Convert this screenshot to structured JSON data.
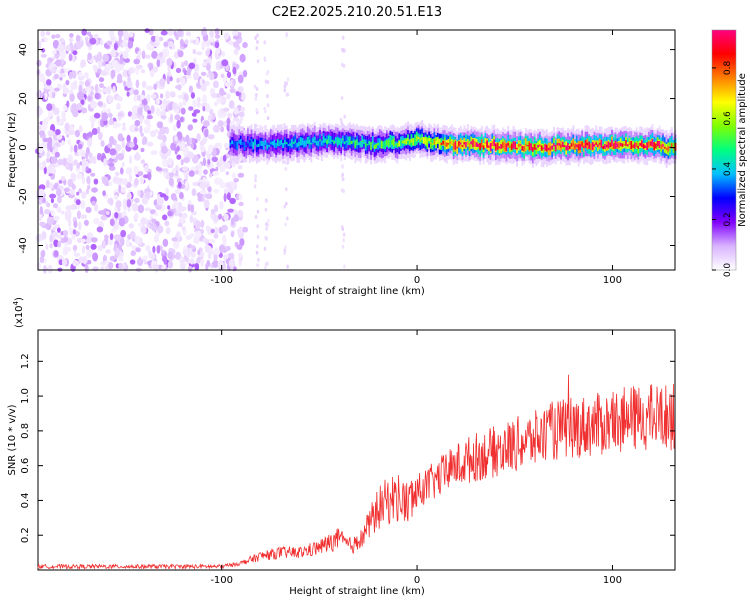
{
  "title": "C2E2.2025.210.20.51.E13",
  "chart_data": [
    {
      "type": "heatmap",
      "xlabel": "Height of straight line (km)",
      "ylabel": "Frequency (Hz)",
      "xlim": [
        -194,
        132
      ],
      "ylim": [
        -50,
        48
      ],
      "xticks": [
        -100,
        0,
        100
      ],
      "yticks": [
        -40,
        -20,
        0,
        20,
        40
      ],
      "colorbar": {
        "label": "Normalized spectral amplitude",
        "range": [
          0,
          0.95
        ],
        "ticks": [
          0.0,
          0.2,
          0.4,
          0.6,
          0.8
        ],
        "tick_labels": [
          "0.0",
          "0.2",
          "0.4",
          "0.6",
          "0.8"
        ],
        "colormap": [
          "#ffffff",
          "#d9b3ff",
          "#8000ff",
          "#0000ff",
          "#00c0ff",
          "#00ff80",
          "#80ff00",
          "#ffff00",
          "#ff8000",
          "#ff0000",
          "#ff0080"
        ]
      },
      "noise_region": {
        "x": [
          -194,
          -88
        ],
        "freq": [
          -50,
          48
        ],
        "amplitude": [
          0.02,
          0.12
        ]
      },
      "signal_band": {
        "x": [
          -96,
          132
        ],
        "center_freq": [
          [
            -96,
            2
          ],
          [
            -80,
            1
          ],
          [
            -60,
            2
          ],
          [
            -40,
            3
          ],
          [
            -20,
            1
          ],
          [
            0,
            3
          ],
          [
            20,
            1
          ],
          [
            40,
            1
          ],
          [
            60,
            0
          ],
          [
            80,
            1
          ],
          [
            100,
            1
          ],
          [
            120,
            1
          ],
          [
            132,
            0
          ]
        ],
        "peak_amplitude": [
          [
            -96,
            0.35
          ],
          [
            -60,
            0.42
          ],
          [
            -20,
            0.5
          ],
          [
            0,
            0.6
          ],
          [
            20,
            0.85
          ],
          [
            60,
            0.9
          ],
          [
            100,
            0.88
          ],
          [
            132,
            0.85
          ]
        ]
      }
    },
    {
      "type": "line",
      "xlabel": "Height of straight line (km)",
      "ylabel": "SNR (10 * v/v)",
      "multiplier_label": "(x10",
      "multiplier_exp": "4",
      "xlim": [
        -194,
        132
      ],
      "ylim": [
        0,
        1.38
      ],
      "xticks": [
        -100,
        0,
        100
      ],
      "yticks": [
        0.2,
        0.4,
        0.6,
        0.8,
        1.0,
        1.2
      ],
      "ytick_labels": [
        "0.2",
        "0.4",
        "0.6",
        "0.8",
        "1.0",
        "1.2"
      ],
      "color": "#f03030",
      "series": [
        {
          "x": [
            -194,
            -180,
            -160,
            -140,
            -120,
            -100,
            -90,
            -80,
            -70,
            -60,
            -50,
            -40,
            -35,
            -30,
            -25,
            -20,
            -15,
            -10,
            -5,
            0,
            10,
            20,
            30,
            40,
            50,
            60,
            70,
            80,
            90,
            100,
            110,
            120,
            132
          ],
          "y": [
            0.02,
            0.02,
            0.02,
            0.02,
            0.02,
            0.02,
            0.04,
            0.08,
            0.1,
            0.1,
            0.13,
            0.18,
            0.14,
            0.15,
            0.25,
            0.35,
            0.4,
            0.42,
            0.38,
            0.45,
            0.52,
            0.6,
            0.65,
            0.68,
            0.72,
            0.75,
            0.8,
            0.82,
            0.83,
            0.85,
            0.87,
            0.88,
            0.88
          ]
        }
      ]
    }
  ]
}
